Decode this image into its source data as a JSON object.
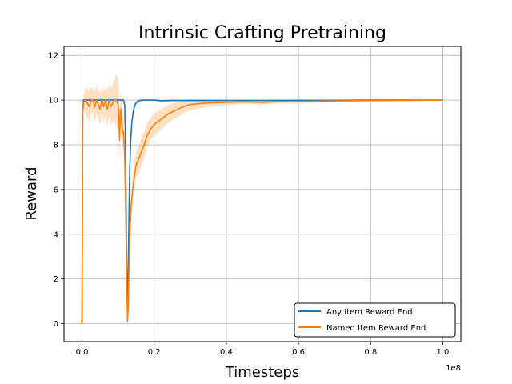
{
  "chart_data": {
    "type": "line",
    "title": "Intrinsic Crafting Pretraining",
    "xlabel": "Timesteps",
    "ylabel": "Reward",
    "x_offset_label": "1e8",
    "xlim": [
      -0.05,
      1.05
    ],
    "ylim": [
      -0.8,
      12.4
    ],
    "xticks": [
      0.0,
      0.2,
      0.4,
      0.6,
      0.8,
      1.0
    ],
    "xtick_labels": [
      "0.0",
      "0.2",
      "0.4",
      "0.6",
      "0.8",
      "1.0"
    ],
    "yticks": [
      0,
      2,
      4,
      6,
      8,
      10,
      12
    ],
    "ytick_labels": [
      "0",
      "2",
      "4",
      "6",
      "8",
      "10",
      "12"
    ],
    "grid": true,
    "legend_position": "lower-right",
    "series": [
      {
        "name": "Any Item Reward End",
        "color": "#1f77b4",
        "band_color": "#aec7e8",
        "x": [
          0.0,
          0.002,
          0.004,
          0.006,
          0.01,
          0.02,
          0.03,
          0.04,
          0.05,
          0.06,
          0.07,
          0.08,
          0.09,
          0.1,
          0.11,
          0.115,
          0.118,
          0.12,
          0.122,
          0.124,
          0.126,
          0.128,
          0.13,
          0.132,
          0.135,
          0.138,
          0.142,
          0.146,
          0.15,
          0.155,
          0.16,
          0.17,
          0.18,
          0.2,
          0.22,
          0.25,
          0.3,
          0.35,
          0.4,
          0.5,
          0.6,
          0.7,
          0.8,
          0.9,
          1.0
        ],
        "y": [
          0.0,
          9.5,
          10.0,
          10.0,
          10.0,
          10.0,
          10.0,
          10.0,
          10.0,
          10.0,
          10.0,
          10.0,
          10.0,
          10.0,
          10.0,
          10.0,
          9.8,
          8.5,
          5.5,
          2.0,
          1.2,
          2.5,
          4.8,
          6.8,
          8.2,
          9.0,
          9.5,
          9.75,
          9.88,
          9.95,
          9.98,
          10.0,
          10.0,
          10.0,
          9.97,
          9.98,
          9.98,
          9.98,
          9.98,
          9.98,
          9.99,
          9.99,
          10.0,
          10.0,
          10.0
        ],
        "band": [
          0.0,
          0.3,
          0.1,
          0.1,
          0.1,
          0.1,
          0.1,
          0.1,
          0.1,
          0.1,
          0.1,
          0.1,
          0.1,
          0.1,
          0.1,
          0.1,
          0.2,
          0.6,
          1.0,
          0.8,
          0.6,
          0.8,
          0.8,
          0.6,
          0.4,
          0.3,
          0.2,
          0.15,
          0.1,
          0.08,
          0.06,
          0.05,
          0.05,
          0.05,
          0.05,
          0.05,
          0.05,
          0.05,
          0.05,
          0.05,
          0.04,
          0.04,
          0.03,
          0.03,
          0.03
        ]
      },
      {
        "name": "Named Item Reward End",
        "color": "#ff7f0e",
        "band_color": "#ffbb78",
        "x": [
          0.0,
          0.002,
          0.004,
          0.01,
          0.02,
          0.025,
          0.03,
          0.035,
          0.04,
          0.05,
          0.055,
          0.06,
          0.065,
          0.07,
          0.075,
          0.08,
          0.09,
          0.095,
          0.1,
          0.102,
          0.104,
          0.106,
          0.108,
          0.11,
          0.112,
          0.115,
          0.118,
          0.12,
          0.122,
          0.124,
          0.126,
          0.128,
          0.13,
          0.133,
          0.136,
          0.14,
          0.145,
          0.15,
          0.16,
          0.17,
          0.18,
          0.19,
          0.2,
          0.22,
          0.24,
          0.26,
          0.28,
          0.3,
          0.33,
          0.36,
          0.4,
          0.45,
          0.5,
          0.55,
          0.6,
          0.7,
          0.8,
          0.9,
          1.0
        ],
        "y": [
          0.0,
          9.4,
          9.9,
          10.0,
          9.7,
          10.0,
          10.0,
          9.7,
          10.0,
          9.6,
          10.0,
          9.7,
          10.0,
          9.6,
          10.0,
          9.7,
          10.0,
          10.0,
          9.8,
          9.5,
          8.2,
          9.2,
          9.6,
          9.0,
          8.5,
          8.6,
          7.5,
          6.0,
          4.0,
          1.5,
          0.1,
          0.8,
          2.5,
          4.2,
          5.3,
          5.9,
          6.6,
          7.1,
          7.5,
          7.9,
          8.4,
          8.7,
          8.9,
          9.15,
          9.4,
          9.55,
          9.7,
          9.8,
          9.85,
          9.88,
          9.9,
          9.92,
          9.9,
          9.93,
          9.94,
          9.96,
          9.98,
          9.99,
          10.0
        ],
        "band": [
          0.0,
          0.4,
          0.3,
          0.6,
          0.7,
          0.6,
          0.5,
          0.7,
          0.6,
          0.7,
          0.6,
          0.7,
          0.6,
          0.8,
          0.7,
          0.8,
          0.9,
          1.2,
          1.2,
          1.1,
          0.9,
          0.8,
          0.8,
          0.8,
          0.7,
          0.6,
          0.6,
          0.6,
          0.6,
          0.5,
          0.3,
          0.5,
          0.6,
          0.6,
          0.6,
          0.6,
          0.6,
          0.6,
          0.6,
          0.6,
          0.55,
          0.5,
          0.5,
          0.45,
          0.4,
          0.35,
          0.3,
          0.25,
          0.2,
          0.15,
          0.12,
          0.1,
          0.1,
          0.08,
          0.08,
          0.06,
          0.05,
          0.04,
          0.03
        ]
      }
    ]
  }
}
